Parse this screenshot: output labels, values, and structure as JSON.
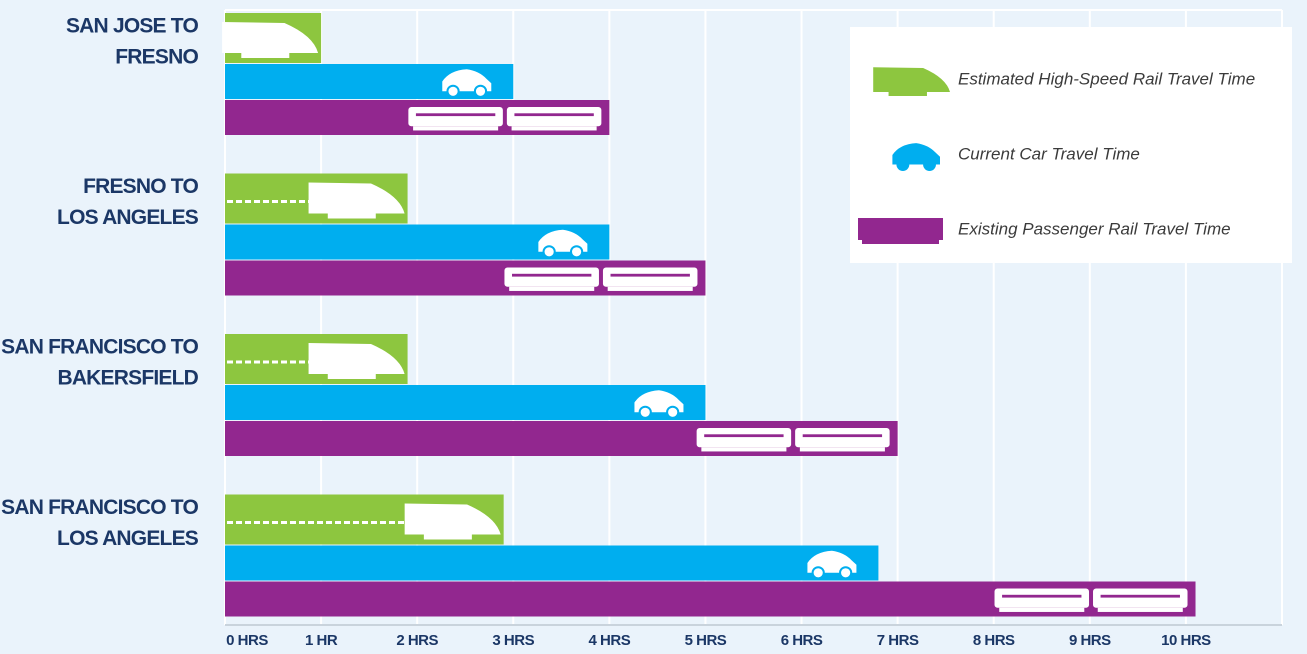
{
  "chart_data": {
    "type": "barh",
    "categories": [
      [
        "SAN JOSE TO",
        "FRESNO"
      ],
      [
        "FRESNO TO",
        "LOS ANGELES"
      ],
      [
        "SAN FRANCISCO TO",
        "BAKERSFIELD"
      ],
      [
        "SAN FRANCISCO TO",
        "LOS ANGELES"
      ]
    ],
    "series": [
      {
        "name": "Estimated High-Speed Rail Travel Time",
        "color": "#8dc63f",
        "icon": "hsr",
        "values": [
          1.0,
          1.9,
          1.9,
          2.9
        ]
      },
      {
        "name": "Current Car Travel Time",
        "color": "#00aeef",
        "icon": "car",
        "values": [
          3.0,
          4.0,
          5.0,
          6.8
        ]
      },
      {
        "name": "Existing Passenger Rail Travel Time",
        "color": "#92278f",
        "icon": "rail",
        "values": [
          4.0,
          5.0,
          7.0,
          10.1
        ]
      }
    ],
    "xlim": [
      0,
      11
    ],
    "xticks": [
      {
        "value": 0,
        "label": "0 HRS"
      },
      {
        "value": 1,
        "label": "1 HR"
      },
      {
        "value": 2,
        "label": "2 HRS"
      },
      {
        "value": 3,
        "label": "3 HRS"
      },
      {
        "value": 4,
        "label": "4 HRS"
      },
      {
        "value": 5,
        "label": "5 HRS"
      },
      {
        "value": 6,
        "label": "6 HRS"
      },
      {
        "value": 7,
        "label": "7 HRS"
      },
      {
        "value": 8,
        "label": "8 HRS"
      },
      {
        "value": 9,
        "label": "9 HRS"
      },
      {
        "value": 10,
        "label": "10 HRS"
      }
    ],
    "grid": true,
    "legend": "upper right"
  }
}
